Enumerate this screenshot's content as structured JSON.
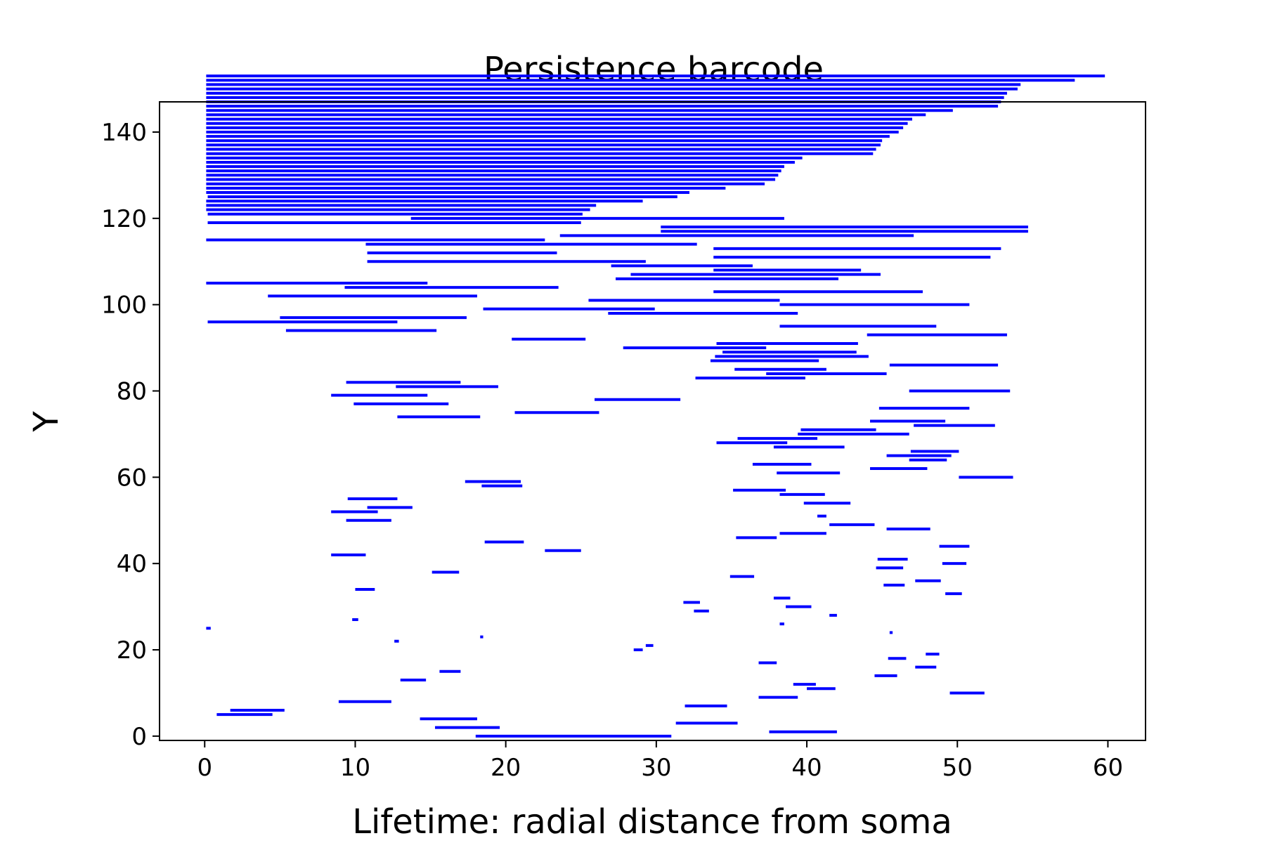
{
  "chart_data": {
    "type": "barcode",
    "title": "Persistence barcode",
    "xlabel": "Lifetime: radial distance from soma",
    "ylabel": "Y",
    "xlim": [
      -3,
      62.5
    ],
    "ylim": [
      -1,
      147
    ],
    "xticks": [
      0,
      10,
      20,
      30,
      40,
      50,
      60
    ],
    "yticks": [
      0,
      20,
      40,
      60,
      80,
      100,
      120,
      140
    ],
    "grid": false,
    "legend": "none",
    "bar_color": "#0000ff",
    "intervals": [
      [
        18.0,
        31.0
      ],
      [
        37.5,
        42.0
      ],
      [
        15.3,
        19.6
      ],
      [
        31.3,
        35.4
      ],
      [
        14.3,
        18.1
      ],
      [
        0.8,
        4.5
      ],
      [
        1.7,
        5.3
      ],
      [
        31.9,
        34.7
      ],
      [
        8.9,
        12.4
      ],
      [
        36.8,
        39.4
      ],
      [
        49.5,
        51.8
      ],
      [
        40.0,
        41.9
      ],
      [
        39.1,
        40.6
      ],
      [
        13.0,
        14.7
      ],
      [
        44.5,
        46.0
      ],
      [
        15.6,
        17.0
      ],
      [
        47.2,
        48.6
      ],
      [
        36.8,
        38.0
      ],
      [
        45.4,
        46.6
      ],
      [
        47.9,
        48.8
      ],
      [
        28.5,
        29.1
      ],
      [
        29.3,
        29.8
      ],
      [
        12.6,
        12.9
      ],
      [
        18.3,
        18.5
      ],
      [
        45.5,
        45.7
      ],
      [
        0.1,
        0.4
      ],
      [
        38.2,
        38.5
      ],
      [
        9.8,
        10.2
      ],
      [
        41.5,
        42.0
      ],
      [
        32.5,
        33.5
      ],
      [
        38.6,
        40.3
      ],
      [
        31.8,
        32.9
      ],
      [
        37.8,
        38.9
      ],
      [
        49.2,
        50.3
      ],
      [
        10.0,
        11.3
      ],
      [
        45.1,
        46.5
      ],
      [
        47.2,
        48.9
      ],
      [
        34.9,
        36.5
      ],
      [
        15.1,
        16.9
      ],
      [
        44.6,
        46.4
      ],
      [
        49.0,
        50.6
      ],
      [
        44.7,
        46.7
      ],
      [
        8.4,
        10.7
      ],
      [
        22.6,
        25.0
      ],
      [
        48.8,
        50.8
      ],
      [
        18.6,
        21.2
      ],
      [
        35.3,
        38.0
      ],
      [
        38.2,
        41.3
      ],
      [
        45.3,
        48.2
      ],
      [
        41.5,
        44.5
      ],
      [
        9.4,
        12.4
      ],
      [
        40.7,
        41.3
      ],
      [
        8.4,
        11.5
      ],
      [
        10.8,
        13.8
      ],
      [
        39.8,
        42.9
      ],
      [
        9.5,
        12.8
      ],
      [
        38.2,
        41.2
      ],
      [
        35.1,
        38.6
      ],
      [
        18.4,
        21.1
      ],
      [
        17.3,
        21.0
      ],
      [
        50.1,
        53.7
      ],
      [
        38.0,
        42.2
      ],
      [
        44.2,
        48.0
      ],
      [
        36.4,
        40.3
      ],
      [
        46.8,
        49.3
      ],
      [
        45.3,
        49.6
      ],
      [
        46.9,
        50.1
      ],
      [
        37.8,
        42.5
      ],
      [
        34.0,
        38.7
      ],
      [
        35.4,
        40.7
      ],
      [
        39.4,
        46.8
      ],
      [
        39.6,
        44.6
      ],
      [
        47.1,
        52.5
      ],
      [
        44.2,
        49.2
      ],
      [
        12.8,
        18.3
      ],
      [
        20.6,
        26.2
      ],
      [
        44.8,
        50.8
      ],
      [
        9.9,
        16.2
      ],
      [
        25.9,
        31.6
      ],
      [
        8.4,
        14.8
      ],
      [
        46.8,
        53.5
      ],
      [
        12.7,
        19.5
      ],
      [
        9.4,
        17.0
      ],
      [
        32.6,
        39.9
      ],
      [
        37.3,
        45.3
      ],
      [
        35.2,
        41.3
      ],
      [
        45.5,
        52.7
      ],
      [
        33.6,
        40.8
      ],
      [
        33.9,
        44.1
      ],
      [
        34.4,
        43.3
      ],
      [
        27.8,
        37.3
      ],
      [
        34.0,
        43.4
      ],
      [
        20.4,
        25.3
      ],
      [
        44.0,
        53.3
      ],
      [
        5.4,
        15.4
      ],
      [
        38.2,
        48.6
      ],
      [
        0.2,
        12.8
      ],
      [
        5.0,
        17.4
      ],
      [
        26.8,
        39.4
      ],
      [
        18.5,
        29.9
      ],
      [
        38.2,
        50.8
      ],
      [
        25.5,
        38.2
      ],
      [
        4.2,
        18.1
      ],
      [
        33.8,
        47.7
      ],
      [
        9.3,
        23.5
      ],
      [
        0.1,
        14.8
      ],
      [
        27.3,
        42.1
      ],
      [
        28.3,
        44.9
      ],
      [
        33.8,
        43.6
      ],
      [
        27.0,
        36.4
      ],
      [
        10.8,
        29.3
      ],
      [
        33.8,
        52.2
      ],
      [
        10.8,
        23.4
      ],
      [
        33.8,
        52.9
      ],
      [
        10.7,
        32.7
      ],
      [
        0.1,
        22.6
      ],
      [
        23.6,
        47.1
      ],
      [
        30.3,
        54.7
      ],
      [
        30.3,
        54.7
      ],
      [
        0.2,
        25.0
      ],
      [
        13.7,
        38.5
      ],
      [
        0.2,
        25.1
      ],
      [
        0.1,
        25.6
      ],
      [
        0.1,
        26.0
      ],
      [
        0.1,
        29.1
      ],
      [
        0.2,
        31.4
      ],
      [
        0.1,
        32.2
      ],
      [
        0.1,
        34.6
      ],
      [
        0.1,
        37.2
      ],
      [
        0.1,
        37.9
      ],
      [
        0.1,
        38.1
      ],
      [
        0.1,
        38.3
      ],
      [
        0.1,
        38.5
      ],
      [
        0.1,
        39.2
      ],
      [
        0.1,
        39.7
      ],
      [
        0.1,
        44.4
      ],
      [
        0.1,
        44.6
      ],
      [
        0.1,
        44.9
      ],
      [
        0.1,
        45.0
      ],
      [
        0.1,
        45.5
      ],
      [
        0.1,
        46.1
      ],
      [
        0.1,
        46.4
      ],
      [
        0.1,
        46.7
      ],
      [
        0.1,
        47.0
      ],
      [
        0.1,
        47.9
      ],
      [
        0.1,
        49.7
      ],
      [
        0.1,
        52.7
      ],
      [
        0.1,
        52.9
      ],
      [
        0.1,
        53.1
      ],
      [
        0.1,
        53.3
      ],
      [
        0.1,
        54.0
      ],
      [
        0.1,
        54.2
      ],
      [
        0.1,
        57.8
      ],
      [
        0.1,
        59.8
      ]
    ]
  }
}
